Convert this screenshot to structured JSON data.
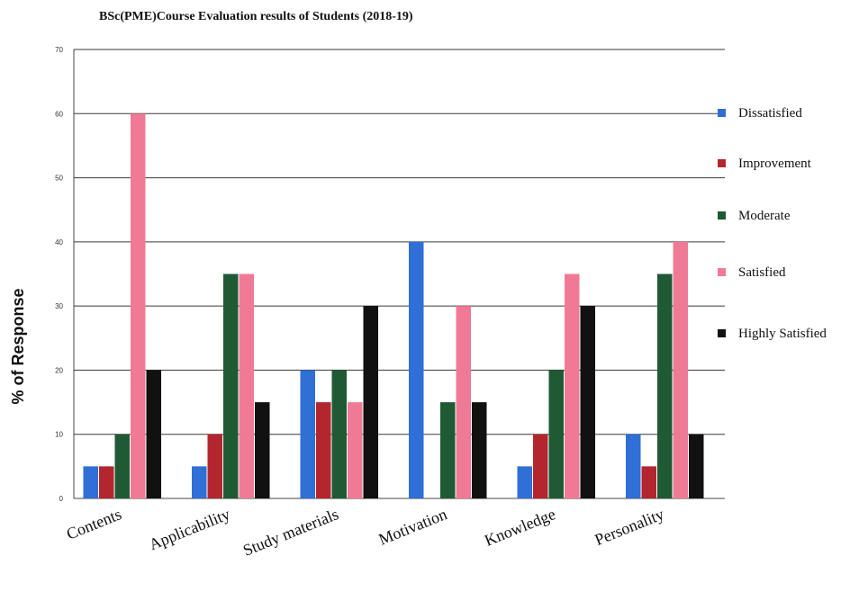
{
  "chart_data": {
    "type": "bar",
    "title": "BSc(PME)Course Evaluation  results of Students (2018-19)",
    "ylabel": "% of Response",
    "xlabel": "",
    "ylim": [
      0,
      70
    ],
    "yticks": [
      0,
      10,
      20,
      30,
      40,
      50,
      60,
      70
    ],
    "grid": true,
    "legend_position": "right",
    "categories": [
      "Contents",
      "Applicability",
      "Study materials",
      "Motivation",
      "Knowledge",
      "Personality"
    ],
    "series": [
      {
        "name": "Dissatisfied",
        "color": "#2f6fd6",
        "values": [
          5,
          5,
          20,
          40,
          5,
          10
        ]
      },
      {
        "name": "Improvement",
        "color": "#b3262e",
        "values": [
          5,
          10,
          15,
          0,
          10,
          5
        ]
      },
      {
        "name": "Moderate",
        "color": "#1f5a34",
        "values": [
          10,
          35,
          20,
          15,
          20,
          35
        ]
      },
      {
        "name": "Satisfied",
        "color": "#f07a96",
        "values": [
          60,
          35,
          15,
          30,
          35,
          40
        ]
      },
      {
        "name": "Highly Satisfied",
        "color": "#111111",
        "values": [
          20,
          15,
          30,
          15,
          30,
          10
        ]
      }
    ]
  }
}
